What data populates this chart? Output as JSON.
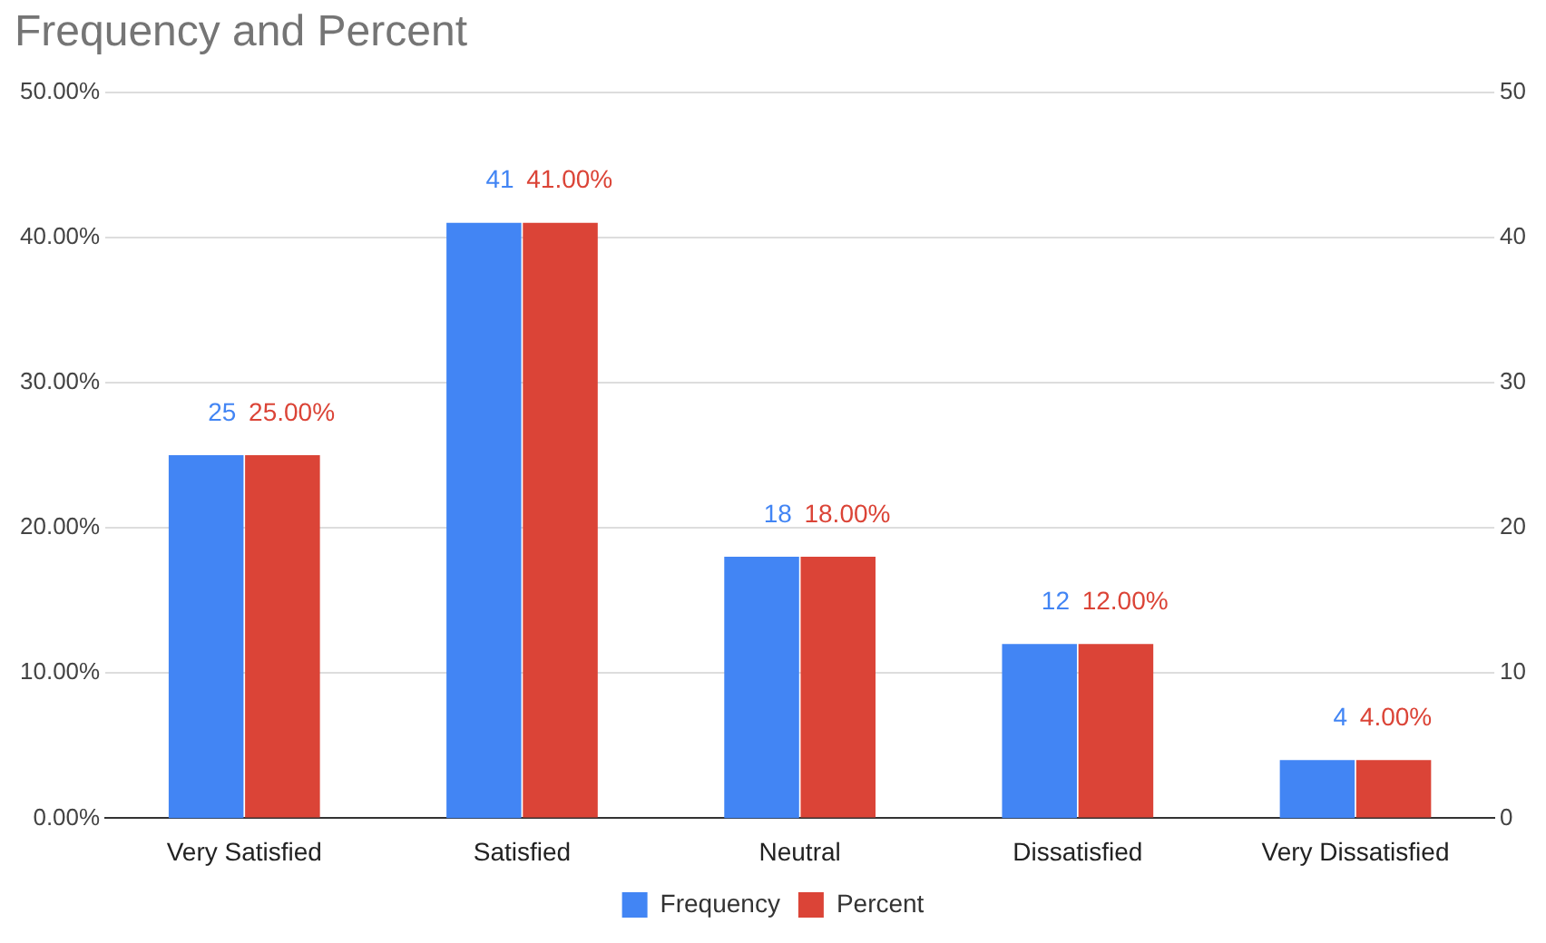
{
  "chart_data": {
    "type": "bar",
    "title": "Frequency and Percent",
    "categories": [
      "Very Satisfied",
      "Satisfied",
      "Neutral",
      "Dissatisfied",
      "Very Dissatisfied"
    ],
    "series": [
      {
        "name": "Frequency",
        "color": "#4285f4",
        "axis": "y2",
        "values": [
          25,
          41,
          18,
          12,
          4
        ],
        "value_labels": [
          "25",
          "41",
          "18",
          "12",
          "4"
        ]
      },
      {
        "name": "Percent",
        "color": "#db4437",
        "values": [
          25,
          41,
          18,
          12,
          4
        ],
        "value_labels": [
          "25.00%",
          "41.00%",
          "18.00%",
          "12.00%",
          "4.00%"
        ]
      }
    ],
    "ylim": [
      0,
      50
    ],
    "yticks": [
      {
        "value": 0,
        "label": "0.00%"
      },
      {
        "value": 10,
        "label": "10.00%"
      },
      {
        "value": 20,
        "label": "20.00%"
      },
      {
        "value": 30,
        "label": "30.00%"
      },
      {
        "value": 40,
        "label": "40.00%"
      },
      {
        "value": 50,
        "label": "50.00%"
      }
    ],
    "y2lim": [
      0,
      50
    ],
    "y2ticks": [
      0,
      10,
      20,
      30,
      40,
      50
    ],
    "grid": "y",
    "legend": "bottom"
  }
}
